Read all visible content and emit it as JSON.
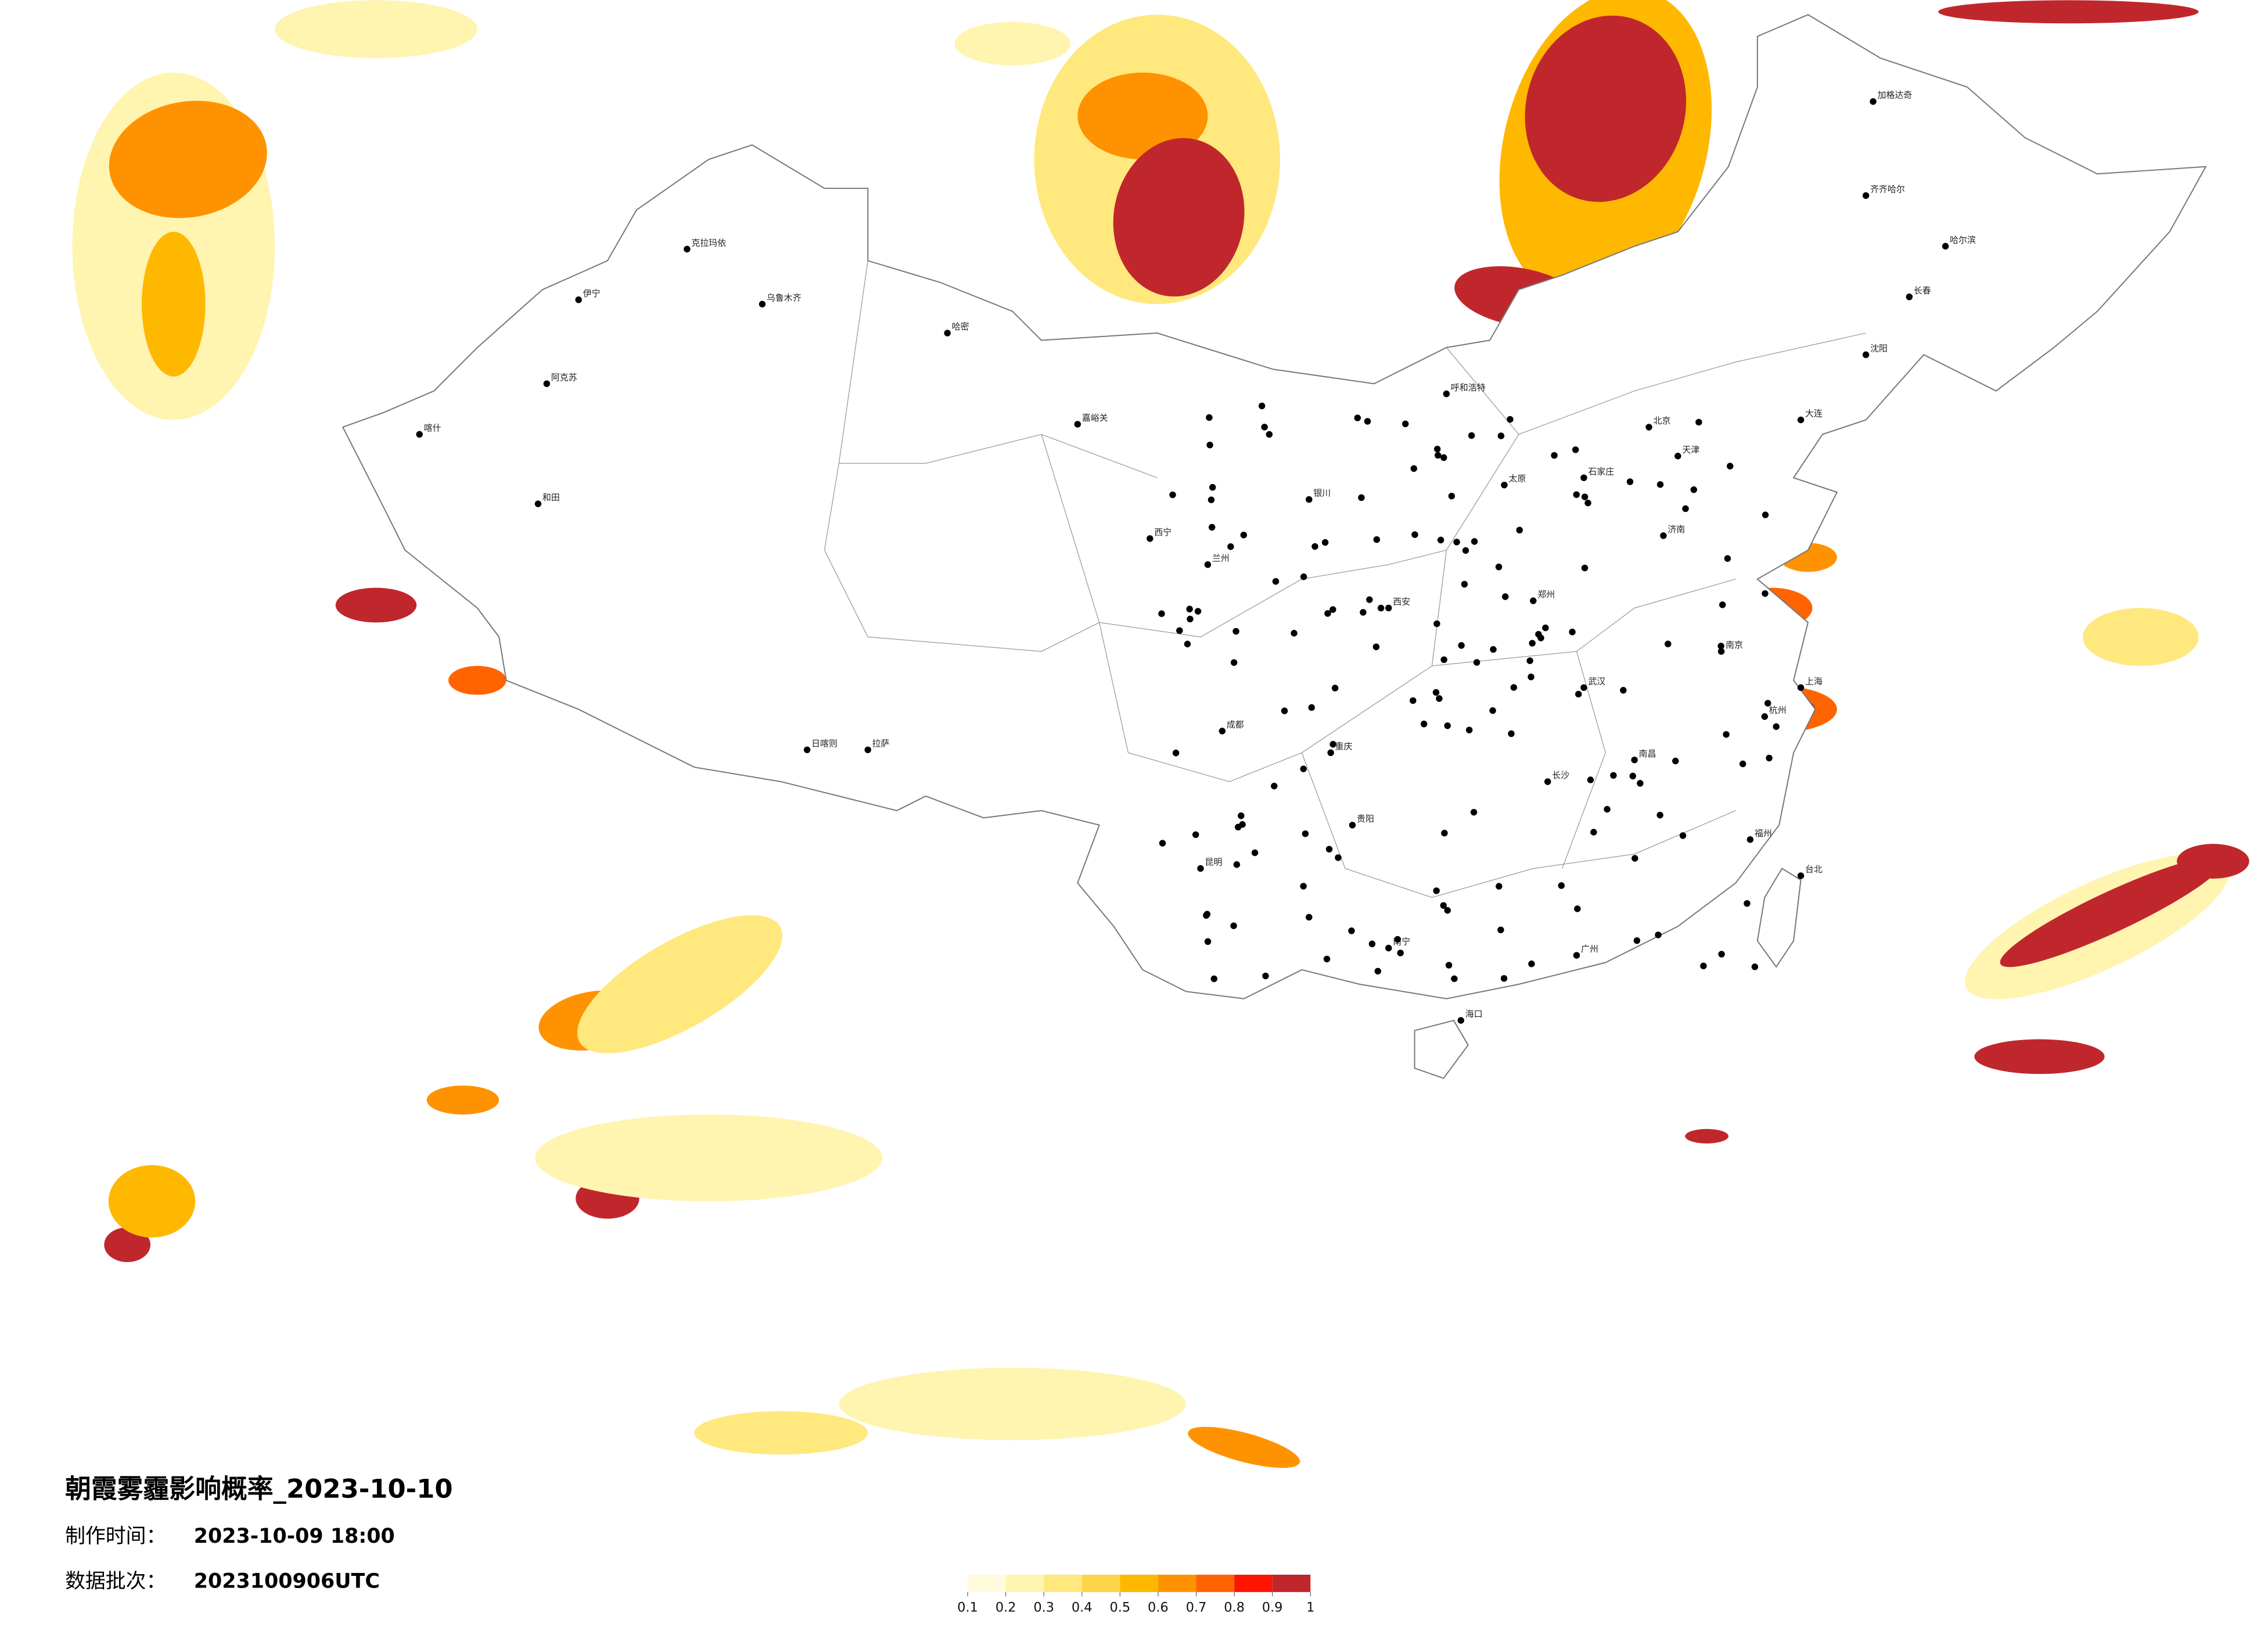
{
  "title": "朝霞雾霾影响概率_2023-10-10",
  "made_time_label": "制作时间：",
  "made_time": "2023-10-09 18:00",
  "batch_label": "数据批次：",
  "batch": "2023100906UTC",
  "legend": {
    "ticks": [
      0.1,
      0.2,
      0.3,
      0.4,
      0.5,
      0.6,
      0.7,
      0.8,
      0.9,
      1
    ],
    "colors": [
      "#fffbdc",
      "#fff4b0",
      "#ffe87e",
      "#ffd44a",
      "#ffb800",
      "#ff9200",
      "#ff6400",
      "#ff1400",
      "#c0272d"
    ]
  },
  "cities": [
    "克拉玛依",
    "乌鲁木齐",
    "伊宁",
    "阿克苏",
    "喀什",
    "和田",
    "哈密",
    "嘉峪关",
    "西宁",
    "兰州",
    "银川",
    "呼和浩特",
    "北京",
    "天津",
    "石家庄",
    "太原",
    "济南",
    "郑州",
    "西安",
    "成都",
    "重庆",
    "拉萨",
    "日喀则",
    "武汉",
    "长沙",
    "南昌",
    "南京",
    "上海",
    "杭州",
    "福州",
    "广州",
    "南宁",
    "昆明",
    "贵阳",
    "海口",
    "哈尔滨",
    "长春",
    "沈阳",
    "大连",
    "台北",
    "齐齐哈尔",
    "加格达奇"
  ]
}
